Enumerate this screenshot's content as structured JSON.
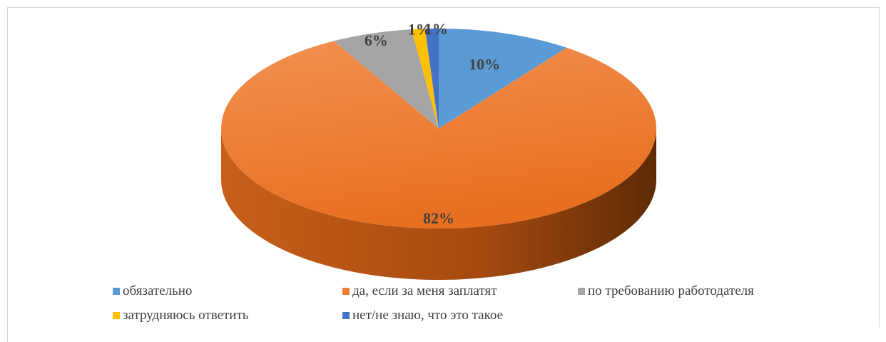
{
  "chart_data": {
    "type": "pie",
    "title": "",
    "slices": [
      {
        "label": "обязательно",
        "value": 10,
        "display": "10%",
        "color": "#5b9bd5"
      },
      {
        "label": "да, если за меня заплатят",
        "value": 82,
        "display": "82%",
        "color": "#ed7d31"
      },
      {
        "label": "по требованию работодателя",
        "value": 6,
        "display": "6%",
        "color": "#a5a5a5"
      },
      {
        "label": "затрудняюсь ответить",
        "value": 1,
        "display": "1%",
        "color": "#ffc000"
      },
      {
        "label": "нет/не знаю, что это такое",
        "value": 1,
        "display": "1%",
        "color": "#4472c4"
      }
    ],
    "legend_position": "bottom",
    "style": "3d"
  }
}
